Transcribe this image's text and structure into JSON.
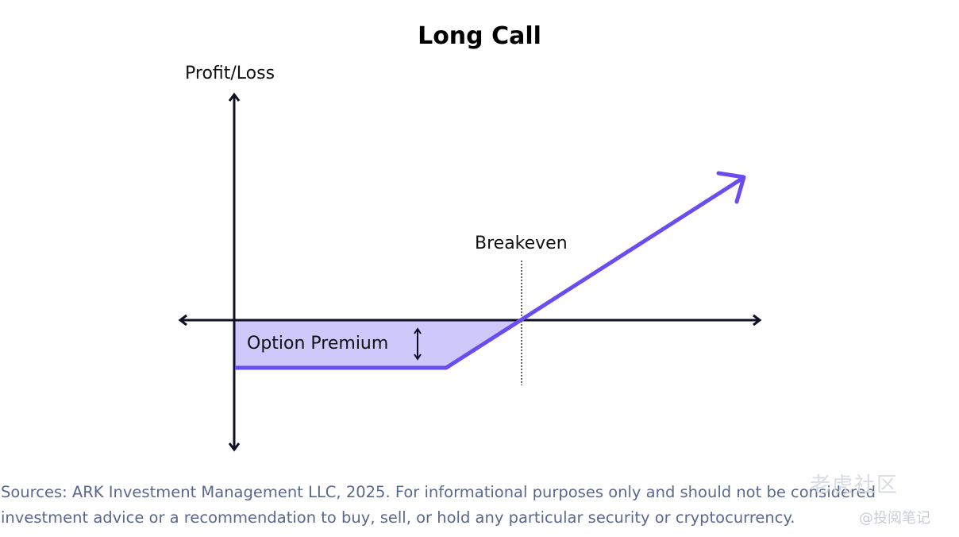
{
  "diagram": {
    "title": "Long Call",
    "y_axis_label": "Profit/Loss",
    "breakeven_label": "Breakeven",
    "premium_label": "Option Premium",
    "colors": {
      "payoff_line": "#6a4cf0",
      "premium_fill": "#cfc8fb",
      "axis": "#0d0f24",
      "breakeven_line": "#333333"
    }
  },
  "footer": {
    "sources": "Sources: ARK Investment Management LLC, 2025. For informational purposes only and should not be considered investment advice or a recommendation to buy, sell, or hold any particular security or cryptocurrency."
  },
  "watermark": {
    "brand": "老虎社区",
    "handle": "@投阅笔记"
  }
}
